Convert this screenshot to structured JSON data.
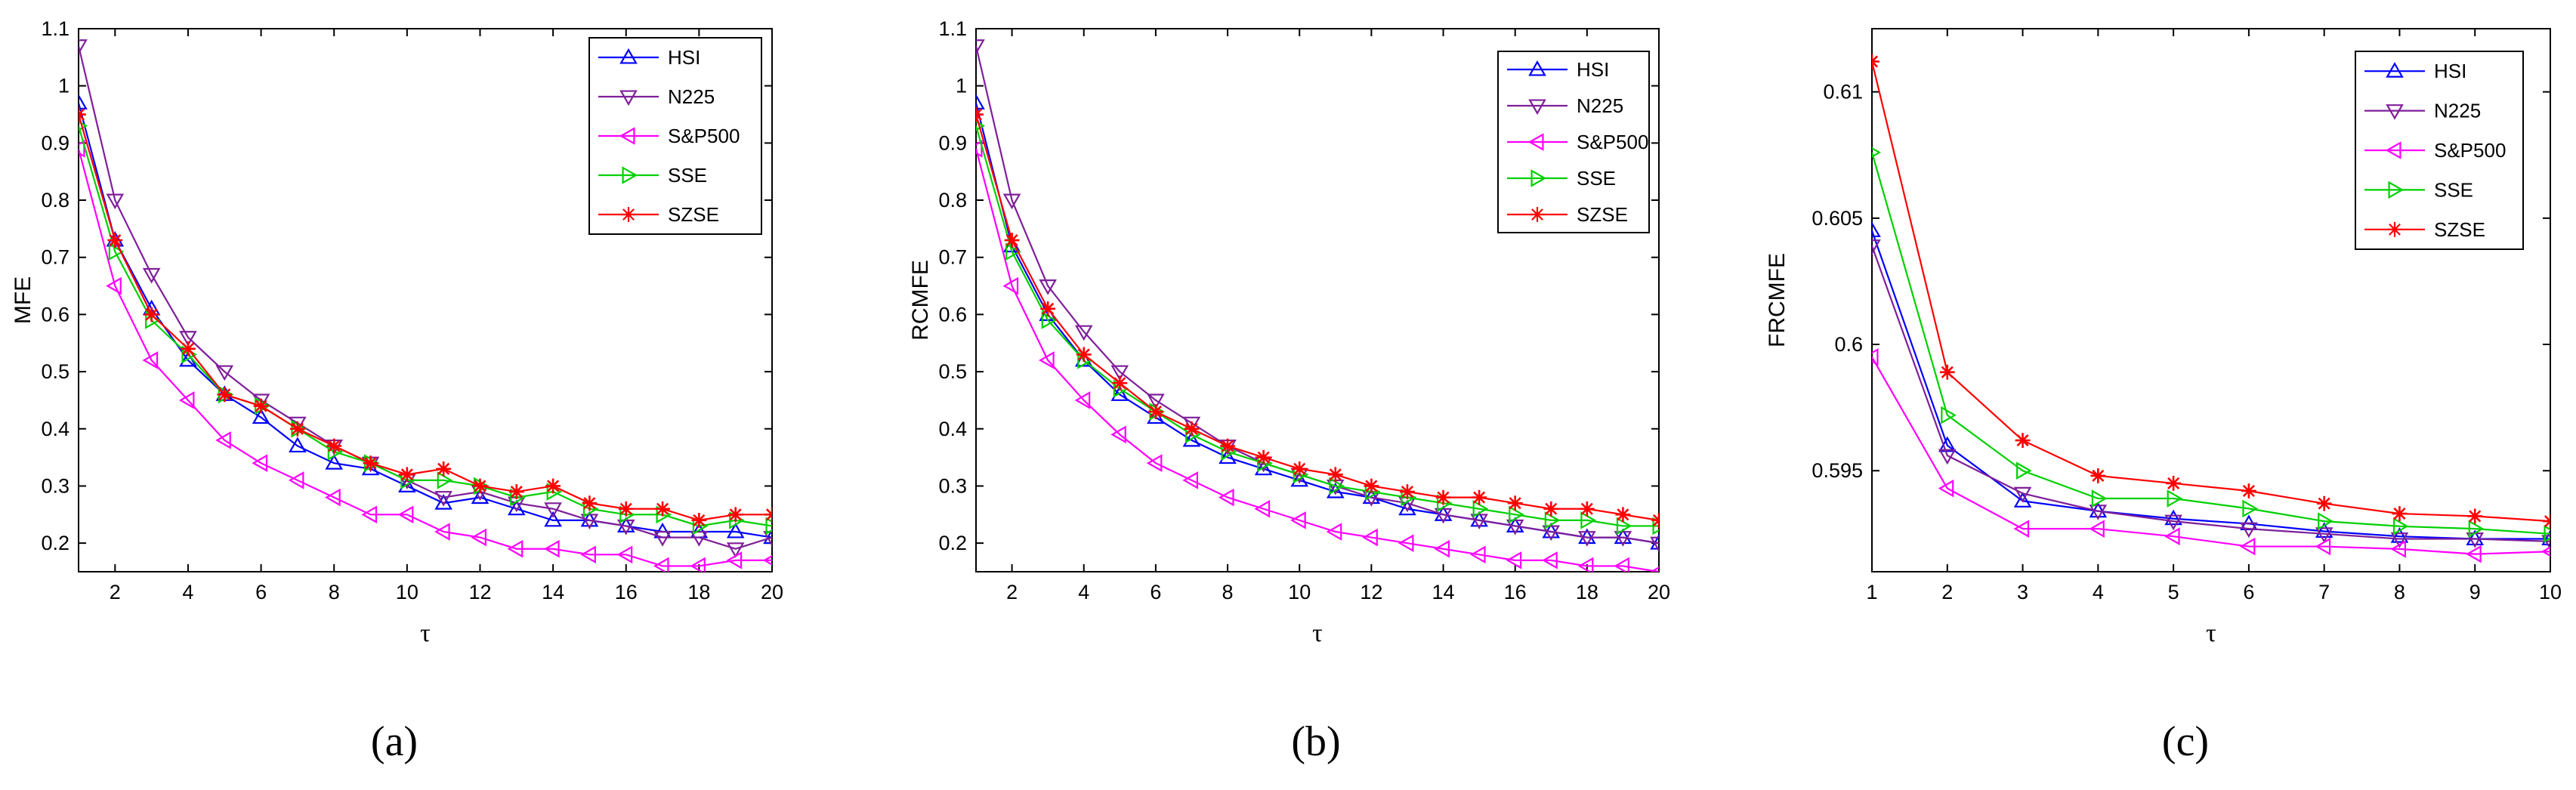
{
  "figure": {
    "captions": [
      "(a)",
      "(b)",
      "(c)"
    ]
  },
  "colors": {
    "HSI": "#0000ff",
    "N225": "#7f1f9a",
    "S&P500": "#ff00ff",
    "SSE": "#00d000",
    "SZSE": "#ff0000"
  },
  "chart_data": [
    {
      "type": "line",
      "title": "",
      "xlabel": "τ",
      "ylabel": "MFE",
      "xlim": [
        1,
        20
      ],
      "ylim": [
        0.15,
        1.1
      ],
      "xticks": [
        2,
        4,
        6,
        8,
        10,
        12,
        14,
        16,
        18,
        20
      ],
      "yticks": [
        0.2,
        0.3,
        0.4,
        0.5,
        0.6,
        0.7,
        0.8,
        0.9,
        1,
        1.1
      ],
      "ytick_labels": [
        "0.2",
        "0.3",
        "0.4",
        "0.5",
        "0.6",
        "0.7",
        "0.8",
        "0.9",
        "1",
        "1.1"
      ],
      "legend_position": "top-right",
      "x": [
        1,
        2,
        3,
        4,
        5,
        6,
        7,
        8,
        9,
        10,
        11,
        12,
        13,
        14,
        15,
        16,
        17,
        18,
        19,
        20
      ],
      "series": [
        {
          "name": "HSI",
          "marker": "triangle-up",
          "values": [
            0.97,
            0.73,
            0.61,
            0.52,
            0.46,
            0.42,
            0.37,
            0.34,
            0.33,
            0.3,
            0.27,
            0.28,
            0.26,
            0.24,
            0.24,
            0.23,
            0.22,
            0.22,
            0.22,
            0.21
          ]
        },
        {
          "name": "N225",
          "marker": "triangle-down",
          "values": [
            1.07,
            0.8,
            0.67,
            0.56,
            0.5,
            0.45,
            0.41,
            0.37,
            0.34,
            0.31,
            0.28,
            0.29,
            0.27,
            0.26,
            0.24,
            0.23,
            0.21,
            0.21,
            0.19,
            0.21
          ]
        },
        {
          "name": "S&P500",
          "marker": "triangle-left",
          "values": [
            0.89,
            0.65,
            0.52,
            0.45,
            0.38,
            0.34,
            0.31,
            0.28,
            0.25,
            0.25,
            0.22,
            0.21,
            0.19,
            0.19,
            0.18,
            0.18,
            0.16,
            0.16,
            0.17,
            0.17
          ]
        },
        {
          "name": "SSE",
          "marker": "triangle-right",
          "values": [
            0.93,
            0.71,
            0.59,
            0.53,
            0.46,
            0.44,
            0.4,
            0.36,
            0.34,
            0.31,
            0.31,
            0.3,
            0.28,
            0.29,
            0.26,
            0.25,
            0.25,
            0.23,
            0.24,
            0.23
          ]
        },
        {
          "name": "SZSE",
          "marker": "star",
          "values": [
            0.95,
            0.73,
            0.6,
            0.54,
            0.46,
            0.44,
            0.4,
            0.37,
            0.34,
            0.32,
            0.33,
            0.3,
            0.29,
            0.3,
            0.27,
            0.26,
            0.26,
            0.24,
            0.25,
            0.25
          ]
        }
      ]
    },
    {
      "type": "line",
      "title": "",
      "xlabel": "τ",
      "ylabel": "RCMFE",
      "xlim": [
        1,
        20
      ],
      "ylim": [
        0.15,
        1.1
      ],
      "xticks": [
        2,
        4,
        6,
        8,
        10,
        12,
        14,
        16,
        18,
        20
      ],
      "yticks": [
        0.2,
        0.3,
        0.4,
        0.5,
        0.6,
        0.7,
        0.8,
        0.9,
        1,
        1.1
      ],
      "ytick_labels": [
        "0.2",
        "0.3",
        "0.4",
        "0.5",
        "0.6",
        "0.7",
        "0.8",
        "0.9",
        "1",
        "1.1"
      ],
      "legend_position": "top-right",
      "x": [
        1,
        2,
        3,
        4,
        5,
        6,
        7,
        8,
        9,
        10,
        11,
        12,
        13,
        14,
        15,
        16,
        17,
        18,
        19,
        20
      ],
      "series": [
        {
          "name": "HSI",
          "marker": "triangle-up",
          "values": [
            0.97,
            0.72,
            0.6,
            0.52,
            0.46,
            0.42,
            0.38,
            0.35,
            0.33,
            0.31,
            0.29,
            0.28,
            0.26,
            0.25,
            0.24,
            0.23,
            0.22,
            0.21,
            0.21,
            0.2
          ]
        },
        {
          "name": "N225",
          "marker": "triangle-down",
          "values": [
            1.07,
            0.8,
            0.65,
            0.57,
            0.5,
            0.45,
            0.41,
            0.37,
            0.34,
            0.32,
            0.3,
            0.28,
            0.27,
            0.25,
            0.24,
            0.23,
            0.22,
            0.21,
            0.21,
            0.2
          ]
        },
        {
          "name": "S&P500",
          "marker": "triangle-left",
          "values": [
            0.89,
            0.65,
            0.52,
            0.45,
            0.39,
            0.34,
            0.31,
            0.28,
            0.26,
            0.24,
            0.22,
            0.21,
            0.2,
            0.19,
            0.18,
            0.17,
            0.17,
            0.16,
            0.16,
            0.15
          ]
        },
        {
          "name": "SSE",
          "marker": "triangle-right",
          "values": [
            0.93,
            0.71,
            0.59,
            0.52,
            0.47,
            0.43,
            0.39,
            0.36,
            0.34,
            0.32,
            0.3,
            0.29,
            0.28,
            0.27,
            0.26,
            0.25,
            0.24,
            0.24,
            0.23,
            0.23
          ]
        },
        {
          "name": "SZSE",
          "marker": "star",
          "values": [
            0.95,
            0.73,
            0.61,
            0.53,
            0.48,
            0.43,
            0.4,
            0.37,
            0.35,
            0.33,
            0.32,
            0.3,
            0.29,
            0.28,
            0.28,
            0.27,
            0.26,
            0.26,
            0.25,
            0.24
          ]
        }
      ]
    },
    {
      "type": "line",
      "title": "",
      "xlabel": "τ",
      "ylabel": "FRCMFE",
      "xlim": [
        1,
        10
      ],
      "ylim": [
        0.591,
        0.6125
      ],
      "xticks": [
        1,
        2,
        3,
        4,
        5,
        6,
        7,
        8,
        9,
        10
      ],
      "yticks": [
        0.595,
        0.6,
        0.605,
        0.61
      ],
      "ytick_labels": [
        "0.595",
        "0.6",
        "0.605",
        "0.61"
      ],
      "legend_position": "top-right",
      "x": [
        1,
        2,
        3,
        4,
        5,
        6,
        7,
        8,
        9,
        10
      ],
      "series": [
        {
          "name": "HSI",
          "marker": "triangle-up",
          "values": [
            0.6045,
            0.596,
            0.5938,
            0.5934,
            0.5931,
            0.5929,
            0.5926,
            0.5924,
            0.5923,
            0.5923
          ]
        },
        {
          "name": "N225",
          "marker": "triangle-down",
          "values": [
            0.6039,
            0.5956,
            0.5941,
            0.5934,
            0.593,
            0.5927,
            0.5925,
            0.5923,
            0.5923,
            0.5922
          ]
        },
        {
          "name": "S&P500",
          "marker": "triangle-left",
          "values": [
            0.5995,
            0.5943,
            0.5927,
            0.5927,
            0.5924,
            0.592,
            0.592,
            0.5919,
            0.5917,
            0.5918
          ]
        },
        {
          "name": "SSE",
          "marker": "triangle-right",
          "values": [
            0.6076,
            0.5972,
            0.595,
            0.5939,
            0.5939,
            0.5935,
            0.593,
            0.5928,
            0.5927,
            0.5925
          ]
        },
        {
          "name": "SZSE",
          "marker": "star",
          "values": [
            0.6112,
            0.5989,
            0.5962,
            0.5948,
            0.5945,
            0.5942,
            0.5937,
            0.5933,
            0.5932,
            0.593
          ]
        }
      ]
    }
  ]
}
